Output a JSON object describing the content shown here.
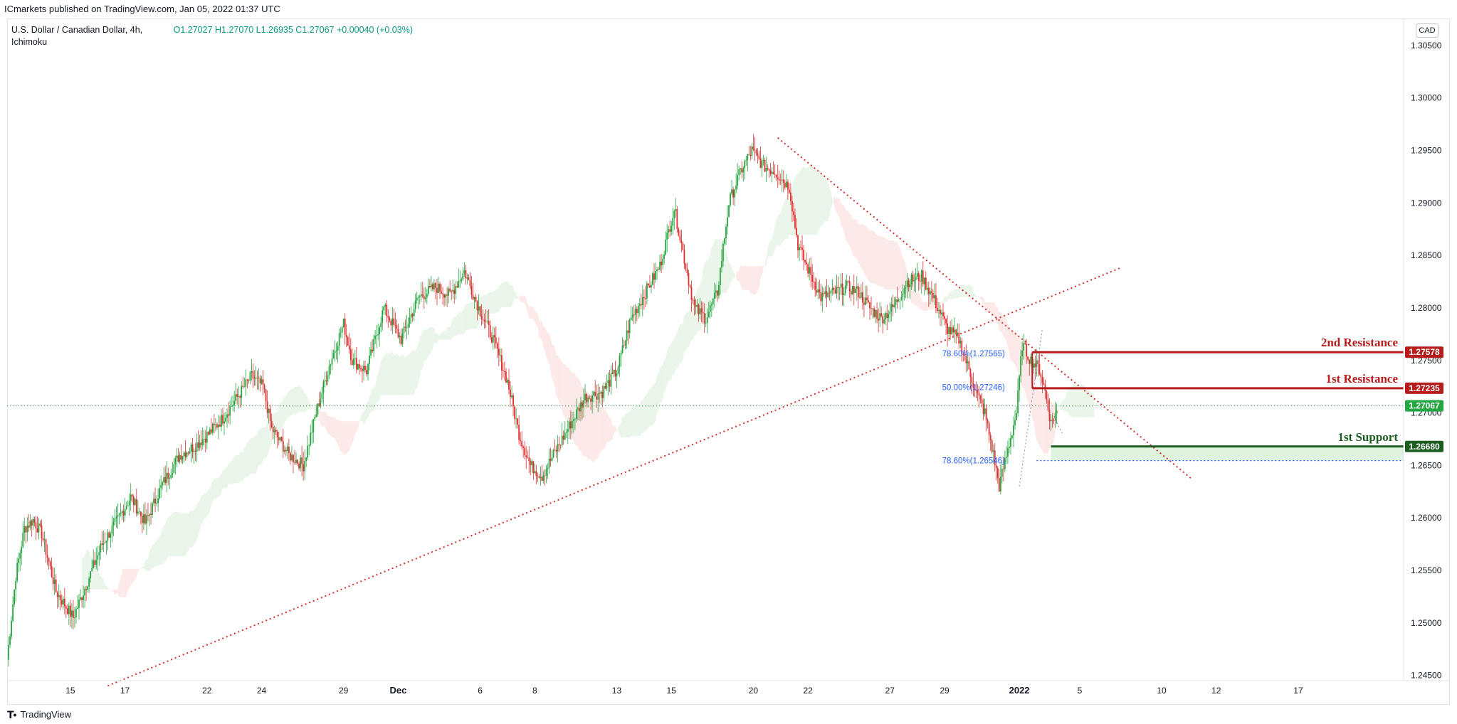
{
  "header": {
    "published_text": "ICmarkets published on TradingView.com, Jan 05, 2022 01:37 UTC"
  },
  "legend": {
    "symbol": "U.S. Dollar / Canadian Dollar, 4h,",
    "indicator": "Ichimoku",
    "ohlc": "O1.27027  H1.27070  L1.26935  C1.27067  +0.00040 (+0.03%)"
  },
  "currency": "CAD",
  "footer": {
    "brand": "TradingView",
    "logo_icon": "tradingview-logo-icon"
  },
  "colors": {
    "bull": "#089981",
    "bull_candle": "#26a641",
    "bear": "#e03030",
    "trendline": "#d32f2f",
    "resistance": "#b71c1c",
    "support": "#1b5e20",
    "fib": "#2962ff",
    "cloud_bull": "#e9f5e9",
    "cloud_bear": "#fde8e8"
  },
  "chart_data": {
    "type": "candlestick",
    "symbol": "USDCAD",
    "timeframe": "4h",
    "ylim": [
      1.2445,
      1.3075
    ],
    "y_ticks": [
      "1.30500",
      "1.30000",
      "1.29500",
      "1.29000",
      "1.28500",
      "1.28000",
      "1.27500",
      "1.27000",
      "1.26500",
      "1.26000",
      "1.25500",
      "1.25000",
      "1.24500"
    ],
    "x_ticks": [
      {
        "label": "15",
        "bar": 44
      },
      {
        "label": "17",
        "bar": 82
      },
      {
        "label": "22",
        "bar": 139
      },
      {
        "label": "24",
        "bar": 177
      },
      {
        "label": "29",
        "bar": 234
      },
      {
        "label": "Dec",
        "bar": 272
      },
      {
        "label": "6",
        "bar": 329
      },
      {
        "label": "8",
        "bar": 367
      },
      {
        "label": "13",
        "bar": 424
      },
      {
        "label": "15",
        "bar": 462
      },
      {
        "label": "20",
        "bar": 519
      },
      {
        "label": "22",
        "bar": 557
      },
      {
        "label": "27",
        "bar": 614
      },
      {
        "label": "29",
        "bar": 652
      },
      {
        "label": "2022",
        "bar": 704
      },
      {
        "label": "5",
        "bar": 746
      },
      {
        "label": "10",
        "bar": 803
      },
      {
        "label": "12",
        "bar": 841
      },
      {
        "label": "17",
        "bar": 898
      }
    ],
    "bar_count": 900,
    "anchors": [
      [
        0,
        1.2465
      ],
      [
        6,
        1.2545
      ],
      [
        12,
        1.259
      ],
      [
        18,
        1.2598
      ],
      [
        24,
        1.2585
      ],
      [
        34,
        1.253
      ],
      [
        46,
        1.2505
      ],
      [
        56,
        1.254
      ],
      [
        66,
        1.2575
      ],
      [
        76,
        1.2596
      ],
      [
        86,
        1.262
      ],
      [
        96,
        1.2595
      ],
      [
        108,
        1.2632
      ],
      [
        120,
        1.266
      ],
      [
        130,
        1.2668
      ],
      [
        140,
        1.268
      ],
      [
        150,
        1.2695
      ],
      [
        160,
        1.2715
      ],
      [
        170,
        1.2735
      ],
      [
        178,
        1.2725
      ],
      [
        184,
        1.2685
      ],
      [
        196,
        1.266
      ],
      [
        206,
        1.265
      ],
      [
        214,
        1.2695
      ],
      [
        224,
        1.2745
      ],
      [
        234,
        1.2785
      ],
      [
        240,
        1.275
      ],
      [
        250,
        1.274
      ],
      [
        262,
        1.28
      ],
      [
        274,
        1.277
      ],
      [
        286,
        1.281
      ],
      [
        298,
        1.282
      ],
      [
        308,
        1.2812
      ],
      [
        318,
        1.2835
      ],
      [
        328,
        1.28
      ],
      [
        338,
        1.277
      ],
      [
        348,
        1.273
      ],
      [
        356,
        1.268
      ],
      [
        364,
        1.265
      ],
      [
        372,
        1.264
      ],
      [
        382,
        1.2665
      ],
      [
        392,
        1.269
      ],
      [
        402,
        1.2715
      ],
      [
        414,
        1.272
      ],
      [
        424,
        1.274
      ],
      [
        434,
        1.279
      ],
      [
        444,
        1.2815
      ],
      [
        454,
        1.284
      ],
      [
        464,
        1.2895
      ],
      [
        472,
        1.284
      ],
      [
        478,
        1.28
      ],
      [
        486,
        1.279
      ],
      [
        494,
        1.2815
      ],
      [
        502,
        1.29
      ],
      [
        510,
        1.293
      ],
      [
        518,
        1.295
      ],
      [
        526,
        1.2935
      ],
      [
        534,
        1.293
      ],
      [
        544,
        1.2915
      ],
      [
        550,
        1.286
      ],
      [
        556,
        1.284
      ],
      [
        566,
        1.281
      ],
      [
        576,
        1.2815
      ],
      [
        584,
        1.282
      ],
      [
        592,
        1.2815
      ],
      [
        600,
        1.28
      ],
      [
        608,
        1.279
      ],
      [
        616,
        1.28
      ],
      [
        626,
        1.2825
      ],
      [
        636,
        1.283
      ],
      [
        644,
        1.281
      ],
      [
        654,
        1.278
      ],
      [
        662,
        1.277
      ],
      [
        668,
        1.2745
      ],
      [
        674,
        1.272
      ],
      [
        680,
        1.27
      ],
      [
        686,
        1.266
      ],
      [
        690,
        1.263
      ],
      [
        696,
        1.2665
      ],
      [
        702,
        1.27
      ],
      [
        706,
        1.2765
      ],
      [
        712,
        1.275
      ],
      [
        718,
        1.2742
      ],
      [
        722,
        1.272
      ],
      [
        726,
        1.269
      ],
      [
        730,
        1.2702
      ]
    ],
    "ichimoku_cloud": {
      "description": "Shaded Kumo cloud projected 26 periods ahead",
      "bull_color": "#e9f5e9",
      "bear_color": "#fde8e8"
    },
    "trendlines": [
      {
        "name": "ascending-support-trendline",
        "from": [
          70,
          1.244
        ],
        "to": [
          774,
          1.2838
        ]
      },
      {
        "name": "descending-resistance-trendline",
        "from": [
          536,
          1.2962
        ],
        "to": [
          824,
          1.2637
        ]
      }
    ],
    "levels": [
      {
        "name": "2nd-resistance",
        "label": "2nd Resistance",
        "price": 1.27578,
        "price_label": "1.27578",
        "start_bar": 713,
        "color": "#b71c1c"
      },
      {
        "name": "1st-resistance",
        "label": "1st Resistance",
        "price": 1.27235,
        "price_label": "1.27235",
        "start_bar": 713,
        "color": "#b71c1c"
      },
      {
        "name": "1st-support",
        "label": "1st Support",
        "price": 1.2668,
        "price_label": "1.26680",
        "start_bar": 726,
        "color": "#1b5e20"
      }
    ],
    "fib_labels": [
      {
        "text": "78.60%(1.27565)",
        "price": 1.27565,
        "bar": 694
      },
      {
        "text": "50.00%(1.27246)",
        "price": 1.27246,
        "bar": 694
      },
      {
        "text": "78.60%(1.26546)",
        "price": 1.26546,
        "bar": 694
      }
    ],
    "current_price": {
      "price": 1.27067,
      "price_label": "1.27067"
    }
  }
}
